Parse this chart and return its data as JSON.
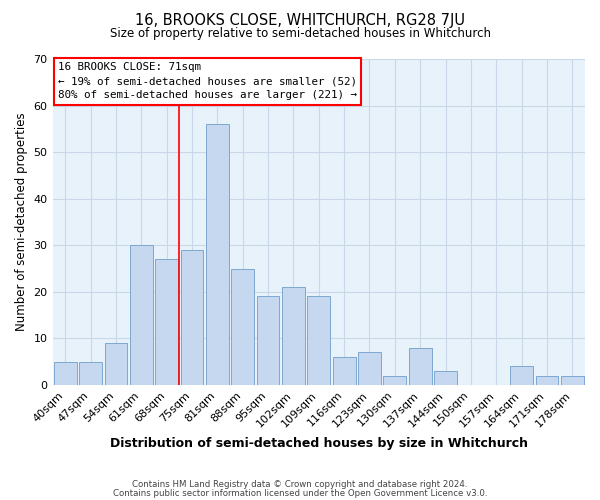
{
  "title": "16, BROOKS CLOSE, WHITCHURCH, RG28 7JU",
  "subtitle": "Size of property relative to semi-detached houses in Whitchurch",
  "xlabel": "Distribution of semi-detached houses by size in Whitchurch",
  "ylabel": "Number of semi-detached properties",
  "bin_labels": [
    "40sqm",
    "47sqm",
    "54sqm",
    "61sqm",
    "68sqm",
    "75sqm",
    "81sqm",
    "88sqm",
    "95sqm",
    "102sqm",
    "109sqm",
    "116sqm",
    "123sqm",
    "130sqm",
    "137sqm",
    "144sqm",
    "150sqm",
    "157sqm",
    "164sqm",
    "171sqm",
    "178sqm"
  ],
  "bar_values": [
    5,
    5,
    9,
    30,
    27,
    29,
    56,
    25,
    19,
    21,
    19,
    6,
    7,
    2,
    8,
    3,
    0,
    0,
    4,
    2,
    2
  ],
  "bar_color": "#c5d8f0",
  "bar_edge_color": "#7ea8d0",
  "grid_color": "#c8d8e8",
  "background_color": "#e8f2fb",
  "annotation_line1": "16 BROOKS CLOSE: 71sqm",
  "annotation_line2": "← 19% of semi-detached houses are smaller (52)",
  "annotation_line3": "80% of semi-detached houses are larger (221) →",
  "red_line_x": 4.5,
  "ylim": [
    0,
    70
  ],
  "yticks": [
    0,
    10,
    20,
    30,
    40,
    50,
    60,
    70
  ],
  "footer_line1": "Contains HM Land Registry data © Crown copyright and database right 2024.",
  "footer_line2": "Contains public sector information licensed under the Open Government Licence v3.0."
}
